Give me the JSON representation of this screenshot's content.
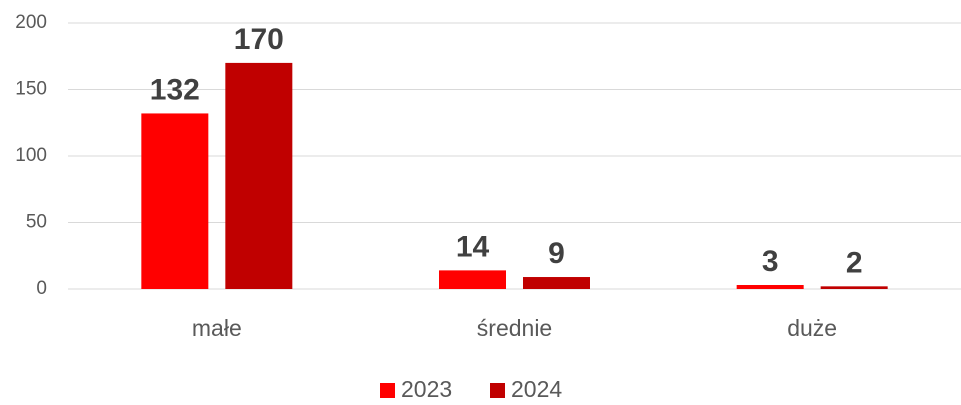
{
  "chart_data": {
    "type": "bar",
    "categories": [
      "małe",
      "średnie",
      "duże"
    ],
    "series": [
      {
        "name": "2023",
        "color": "#ff0000",
        "values": [
          132,
          14,
          3
        ]
      },
      {
        "name": "2024",
        "color": "#c00000",
        "values": [
          170,
          9,
          2
        ]
      }
    ],
    "ylim": [
      0,
      200
    ],
    "yticks": [
      0,
      50,
      100,
      150,
      200
    ],
    "grid": true,
    "legend": "bottom"
  }
}
